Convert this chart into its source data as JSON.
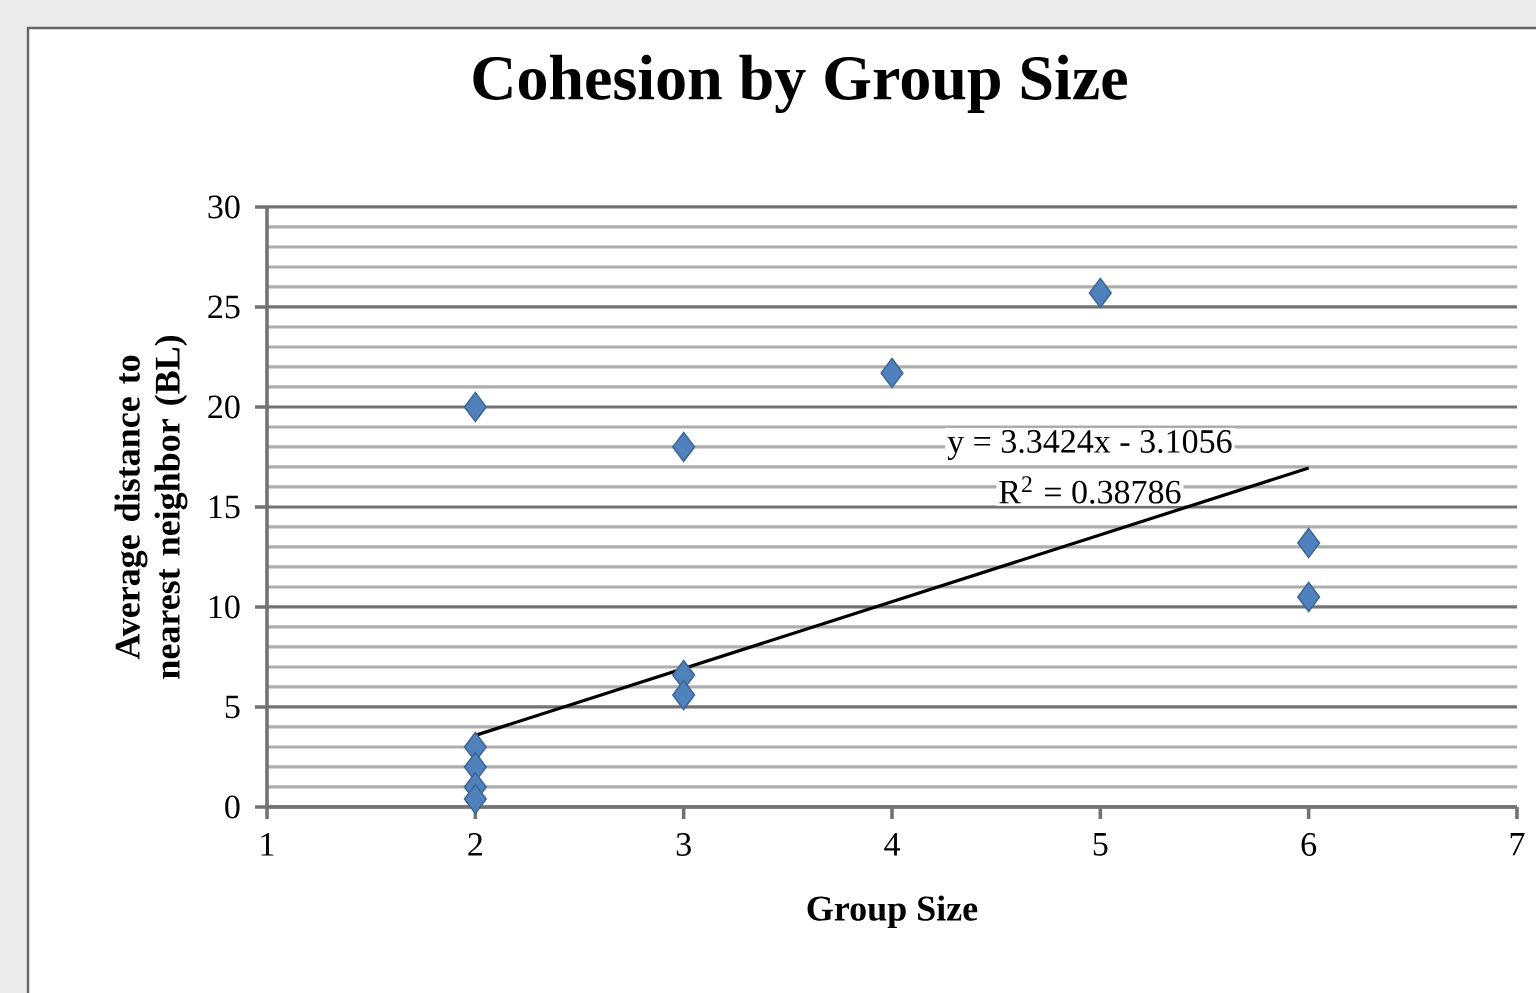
{
  "chart_data": {
    "type": "scatter",
    "title": "Cohesion by Group Size",
    "xlabel": "Group Size",
    "ylabel": "Average distance to nearest neighbor (BL)",
    "series": [
      {
        "color": "#4f81bd",
        "x": [
          2,
          2,
          2,
          2,
          2,
          3,
          3,
          3,
          4,
          5,
          6,
          6
        ],
        "values": [
          20,
          3,
          2,
          1,
          0.4,
          18,
          6.6,
          5.6,
          21.7,
          25.7,
          13.2,
          10.5
        ]
      },
      {
        "type": "line",
        "marker": "none",
        "color": "#000000",
        "x": [
          2,
          6
        ],
        "values": [
          3.58,
          16.95
        ]
      }
    ],
    "annotations": [
      "y = 3.3424x - 3.1056",
      "R$^{2}$ = 0.38786"
    ],
    "xlim": [
      1,
      7
    ],
    "ylim": [
      0,
      30
    ],
    "xticks": [
      1,
      2,
      3,
      4,
      5,
      6,
      7
    ],
    "yticks": [
      0,
      5,
      10,
      15,
      20,
      25,
      30
    ],
    "grid": "y",
    "marker": "diamond"
  }
}
